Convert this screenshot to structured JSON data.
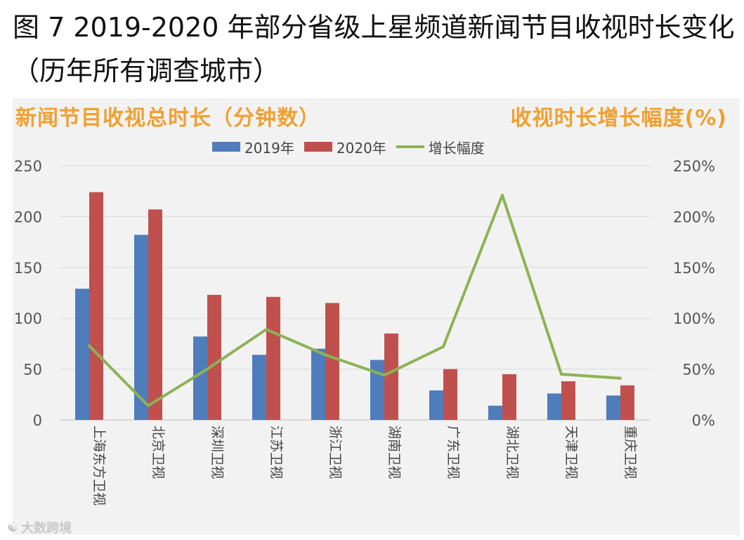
{
  "title": "图 7   2019-2020 年部分省级上星频道新闻节目收视时长变化（历年所有调查城市）",
  "left_axis_label": "新闻节目收视总时长（分钟数）",
  "right_axis_label": "收视时长增长幅度(%)",
  "watermark": "大数跨境",
  "colors": {
    "bar2019": "#4f7cbb",
    "bar2020": "#c0504d",
    "line": "#8db255",
    "axis_label": "#f0a030",
    "plot_bg": "#f2f2f2"
  },
  "legend": [
    {
      "label": "2019年",
      "kind": "bar",
      "series": "2019"
    },
    {
      "label": "2020年",
      "kind": "bar",
      "series": "2020"
    },
    {
      "label": "增长幅度",
      "kind": "line",
      "series": "growth"
    }
  ],
  "chart_data": {
    "type": "bar",
    "categories": [
      "上海东方卫视",
      "北京卫视",
      "深圳卫视",
      "江苏卫视",
      "浙江卫视",
      "湖南卫视",
      "广东卫视",
      "湖北卫视",
      "天津卫视",
      "重庆卫视"
    ],
    "series": [
      {
        "name": "2019年",
        "type": "bar",
        "axis": "left",
        "values": [
          129,
          182,
          82,
          64,
          70,
          59,
          29,
          14,
          26,
          24
        ]
      },
      {
        "name": "2020年",
        "type": "bar",
        "axis": "left",
        "values": [
          224,
          207,
          123,
          121,
          115,
          85,
          50,
          45,
          38,
          34
        ]
      },
      {
        "name": "增长幅度",
        "type": "line",
        "axis": "right",
        "values": [
          73,
          14,
          50,
          89,
          64,
          44,
          72,
          221,
          45,
          41
        ]
      }
    ],
    "ylim": [
      0,
      250
    ],
    "y_ticks": [
      "0",
      "50",
      "100",
      "150",
      "200",
      "250"
    ],
    "y2lim": [
      0,
      250
    ],
    "y2_ticks": [
      "0%",
      "50%",
      "100%",
      "150%",
      "200%",
      "250%"
    ],
    "grid": true,
    "legend_position": "top"
  }
}
